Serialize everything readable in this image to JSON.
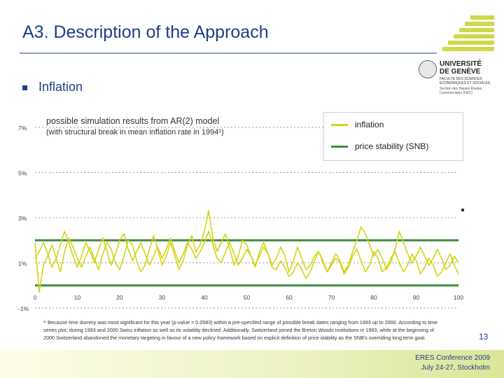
{
  "slide": {
    "title": "A3. Description of the Approach",
    "bullet": "Inflation",
    "page_number": "13",
    "conference": "ERES Conference 2009",
    "dates": "July 24-27, Stockholm"
  },
  "logo": {
    "university_name": "UNIVERSITÉ\nDE GENÈVE",
    "faculty": "FACULTÉ DES SCIENCES\nÉCONOMIQUES ET SOCIALES",
    "section": "Section des Hautes Études\nCommerciales (HEC)"
  },
  "chart_data": {
    "type": "line",
    "title": "possible simulation results from AR(2) model",
    "subtitle": "(with structural break in mean inflation rate in 1994¹)",
    "x": {
      "min": 0,
      "max": 100,
      "ticks": [
        "0",
        "10",
        "20",
        "30",
        "40",
        "50",
        "60",
        "70",
        "80",
        "90",
        "100"
      ]
    },
    "y": {
      "min": -1,
      "max": 7,
      "ticks": [
        "-1%",
        "1%",
        "3%",
        "5%",
        "7%"
      ]
    },
    "series": [
      {
        "name": "inflation",
        "color": "#d4d414",
        "paths": [
          [
            1.9,
            -0.3,
            0.9,
            1.3,
            1.8,
            1.2,
            0.6,
            1.5,
            2.1,
            1.7,
            1.2,
            0.8,
            1.3,
            1.7,
            1.2,
            0.7,
            1.4,
            1.9,
            1.6,
            1.0,
            0.7,
            1.3,
            2.0,
            1.8,
            1.1,
            0.6,
            0.9,
            1.6,
            2.2,
            1.6,
            0.9,
            1.3,
            1.9,
            1.3,
            0.7,
            1.1,
            1.8,
            2.2,
            1.5,
            1.8,
            2.4,
            3.3,
            2.1,
            1.5,
            1.9,
            2.3,
            1.6,
            0.9,
            1.3,
            2.0,
            1.8,
            1.3,
            0.8,
            1.5,
            1.9,
            1.4,
            0.9,
            1.2,
            1.7,
            1.3,
            0.6,
            1.1,
            1.7,
            1.2,
            0.7,
            0.9,
            1.3,
            1.5,
            1.1,
            0.6,
            0.9,
            1.2,
            1.0,
            0.5,
            0.8,
            1.3,
            1.6,
            1.1,
            0.6,
            0.9,
            1.5,
            1.2,
            0.6,
            0.8,
            1.2,
            1.5,
            1.0,
            0.6,
            0.9,
            1.4,
            1.1,
            0.5,
            0.8,
            1.2,
            0.9,
            0.4,
            0.6,
            1.0,
            1.4,
            0.9,
            0.5
          ],
          [
            1.2,
            1.5,
            1.9,
            1.4,
            0.8,
            1.2,
            1.8,
            2.4,
            1.9,
            1.3,
            0.8,
            1.3,
            1.9,
            1.5,
            1.0,
            1.6,
            2.1,
            1.5,
            0.9,
            1.4,
            2.0,
            2.3,
            1.6,
            1.1,
            1.5,
            1.9,
            1.4,
            0.9,
            1.3,
            1.7,
            1.2,
            1.6,
            2.1,
            1.5,
            1.0,
            1.4,
            1.9,
            1.6,
            1.2,
            1.5,
            1.9,
            2.4,
            1.8,
            1.2,
            1.0,
            1.5,
            1.9,
            1.4,
            0.9,
            1.2,
            1.6,
            1.3,
            0.9,
            1.3,
            1.7,
            1.4,
            0.8,
            0.7,
            1.1,
            0.8,
            0.4,
            0.6,
            1.0,
            0.7,
            0.3,
            0.6,
            1.1,
            1.5,
            1.0,
            0.6,
            1.0,
            1.4,
            1.1,
            0.6,
            0.9,
            1.5,
            2.0,
            2.6,
            2.3,
            1.8,
            1.3,
            1.6,
            1.2,
            0.7,
            1.0,
            1.6,
            2.4,
            1.9,
            1.4,
            1.0,
            1.3,
            1.7,
            1.3,
            0.9,
            1.2,
            1.6,
            1.2,
            0.7,
            0.9,
            1.3,
            1.0
          ]
        ]
      },
      {
        "name": "price stability (SNB)",
        "color": "#3f8a3f",
        "levels": [
          2,
          0
        ]
      }
    ],
    "legend": {
      "position": "top-right"
    }
  },
  "footnote": "¹⁾ Because time dummy was most significant for this year (p-value = 0.0583) within a pre-specified range of possible break dates ranging from 1993 up to 2000. According to time series plot, during 1993 and 2000 Swiss inflation as well as its volatility declined. Additionally, Switzerland joined the Breton Woods institutions in 1993, while at the beginning of 2000 Switzerland abandoned the monetary targeting in favour of a new policy framework based on explicit definition of price stability as the SNB's overriding long term goal."
}
